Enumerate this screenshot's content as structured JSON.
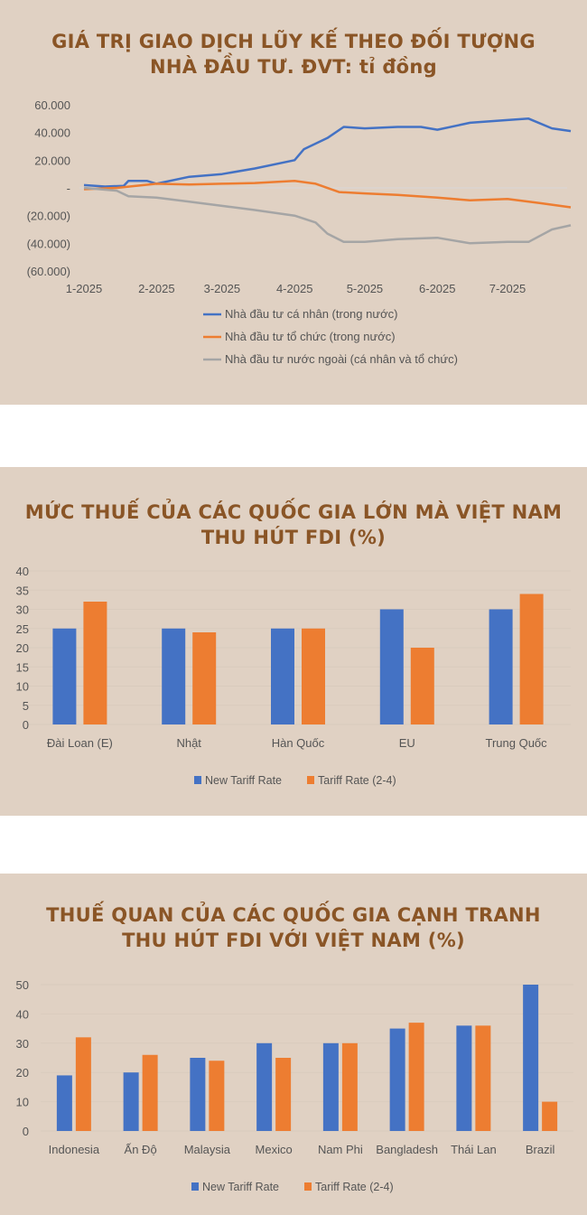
{
  "chart_data": [
    {
      "type": "line",
      "title": "GIÁ TRỊ GIAO DỊCH LŨY KẾ THEO ĐỐI TƯỢNG",
      "subtitle": "NHÀ ĐẦU TƯ. ĐVT: tỉ đồng",
      "ylim": [
        -60000,
        60000
      ],
      "yticks": [
        60000,
        40000,
        20000,
        0,
        -20000,
        -40000,
        -60000
      ],
      "ytick_labels": [
        "60.000",
        "40.000",
        "20.000",
        "-",
        "(20.000)",
        "(40.000)",
        "(60.000)"
      ],
      "xtick_labels": [
        "1-2025",
        "2-2025",
        "3-2025",
        "4-2025",
        "5-2025",
        "6-2025",
        "7-2025"
      ],
      "xticks": [
        "2025-01-01",
        "2025-02-01",
        "2025-03-01",
        "2025-04-01",
        "2025-05-01",
        "2025-06-01",
        "2025-07-01"
      ],
      "legend": "bottom",
      "series": [
        {
          "name": "Nhà đầu tư cá nhân (trong nước)",
          "color": "#4472c4",
          "x": [
            "2025-01-01",
            "2025-01-10",
            "2025-01-18",
            "2025-01-20",
            "2025-01-28",
            "2025-02-01",
            "2025-02-15",
            "2025-03-01",
            "2025-03-15",
            "2025-04-01",
            "2025-04-05",
            "2025-04-15",
            "2025-04-22",
            "2025-05-01",
            "2025-05-15",
            "2025-05-25",
            "2025-06-01",
            "2025-06-15",
            "2025-07-01",
            "2025-07-10",
            "2025-07-20",
            "2025-07-28"
          ],
          "y": [
            2000,
            1000,
            1500,
            5000,
            5000,
            3000,
            8000,
            10000,
            14000,
            20000,
            28000,
            36000,
            44000,
            43000,
            44000,
            44000,
            42000,
            47000,
            49000,
            50000,
            43000,
            41000
          ]
        },
        {
          "name": "Nhà đầu tư tổ chức (trong nước)",
          "color": "#ed7d31",
          "x": [
            "2025-01-01",
            "2025-01-15",
            "2025-02-01",
            "2025-02-15",
            "2025-03-01",
            "2025-03-15",
            "2025-04-01",
            "2025-04-10",
            "2025-04-20",
            "2025-05-01",
            "2025-05-15",
            "2025-06-01",
            "2025-06-15",
            "2025-07-01",
            "2025-07-15",
            "2025-07-28"
          ],
          "y": [
            -1000,
            0,
            3000,
            2500,
            3000,
            3500,
            5000,
            3000,
            -3000,
            -4000,
            -5000,
            -7000,
            -9000,
            -8000,
            -11000,
            -14000
          ]
        },
        {
          "name": "Nhà đầu tư nước ngoài (cá nhân và tổ chức)",
          "color": "#a5a5a5",
          "x": [
            "2025-01-01",
            "2025-01-15",
            "2025-01-20",
            "2025-02-01",
            "2025-02-15",
            "2025-03-01",
            "2025-03-15",
            "2025-04-01",
            "2025-04-10",
            "2025-04-15",
            "2025-04-22",
            "2025-05-01",
            "2025-05-15",
            "2025-06-01",
            "2025-06-15",
            "2025-07-01",
            "2025-07-10",
            "2025-07-20",
            "2025-07-28"
          ],
          "y": [
            0,
            -2000,
            -6000,
            -7000,
            -10000,
            -13000,
            -16000,
            -20000,
            -25000,
            -33000,
            -39000,
            -39000,
            -37000,
            -36000,
            -40000,
            -39000,
            -39000,
            -30000,
            -27000
          ]
        }
      ]
    },
    {
      "type": "bar",
      "title": "MỨC THUẾ CỦA CÁC QUỐC GIA LỚN MÀ VIỆT NAM",
      "subtitle": "THU HÚT FDI (%)",
      "categories": [
        "Đài Loan (E)",
        "Nhật",
        "Hàn Quốc",
        "EU",
        "Trung Quốc"
      ],
      "ylim": [
        0,
        40
      ],
      "yticks": [
        0,
        5,
        10,
        15,
        20,
        25,
        30,
        35,
        40
      ],
      "legend": "bottom",
      "series": [
        {
          "name": "New Tariff Rate",
          "color": "#4472c4",
          "values": [
            25,
            25,
            25,
            30,
            30
          ]
        },
        {
          "name": "Tariff Rate (2-4)",
          "color": "#ed7d31",
          "values": [
            32,
            24,
            25,
            20,
            34
          ]
        }
      ]
    },
    {
      "type": "bar",
      "title": "THUẾ QUAN CỦA CÁC QUỐC GIA CẠNH TRANH",
      "subtitle": "THU HÚT FDI VỚI VIỆT NAM (%)",
      "categories": [
        "Indonesia",
        "Ấn Độ",
        "Malaysia",
        "Mexico",
        "Nam Phi",
        "Bangladesh",
        "Thái Lan",
        "Brazil"
      ],
      "ylim": [
        0,
        50
      ],
      "yticks": [
        0,
        10,
        20,
        30,
        40,
        50
      ],
      "legend": "bottom",
      "series": [
        {
          "name": "New Tariff Rate",
          "color": "#4472c4",
          "values": [
            19,
            20,
            25,
            30,
            30,
            35,
            36,
            50
          ]
        },
        {
          "name": "Tariff Rate (2-4)",
          "color": "#ed7d31",
          "values": [
            32,
            26,
            24,
            25,
            30,
            37,
            36,
            10
          ]
        }
      ]
    }
  ]
}
